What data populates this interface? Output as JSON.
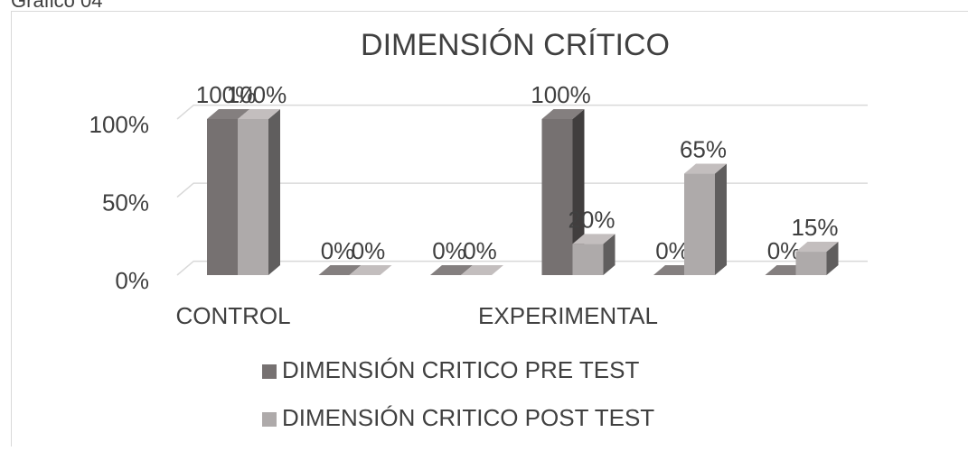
{
  "caption": "Gráfico 04",
  "chart_data": {
    "type": "bar3d",
    "title": "DIMENSIÓN CRÍTICO",
    "categories": [
      "CONTROL",
      null,
      null,
      "EXPERIMENTAL",
      null,
      null
    ],
    "series": [
      {
        "name": "DIMENSIÓN CRITICO PRE TEST",
        "color": "#767171",
        "values": [
          100,
          0,
          0,
          100,
          0,
          0
        ],
        "value_labels": [
          "100%",
          "0%",
          "0%",
          "100%",
          "0%",
          "0%"
        ]
      },
      {
        "name": "DIMENSIÓN CRITICO POST TEST",
        "color": "#aeaaaa",
        "values": [
          100,
          0,
          0,
          20,
          65,
          15
        ],
        "value_labels": [
          "100%",
          "0%",
          "0%",
          "20%",
          "65%",
          "15%"
        ]
      }
    ],
    "ylim": [
      0,
      100
    ],
    "yticks": [
      {
        "value": 0,
        "label": "0%"
      },
      {
        "value": 50,
        "label": "50%"
      },
      {
        "value": 100,
        "label": "100%"
      }
    ],
    "grid": true,
    "legend": "bottom"
  }
}
